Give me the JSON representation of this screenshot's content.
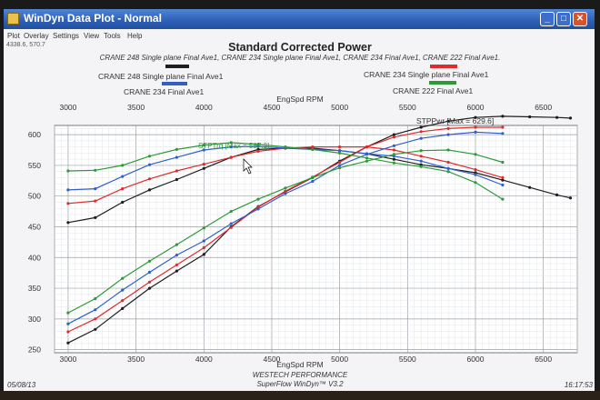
{
  "window": {
    "title": "WinDyn Data Plot - Normal",
    "minimize": "_",
    "maximize": "□",
    "close": "✕"
  },
  "menu": [
    "Plot",
    "Overlay",
    "Settings",
    "View",
    "Tools",
    "Help"
  ],
  "coord_readout": "4338.6, 570.7",
  "footer": {
    "date": "05/08/13",
    "time": "16:17:53",
    "line1": "WESTECH PERFORMANCE",
    "line2": "SuperFlow WinDyn™ V3.2"
  },
  "chart_data": {
    "type": "line",
    "title": "Standard Corrected Power",
    "subtitle": "CRANE 248 Single plane  Final Ave1, CRANE 234 Single plane  Final Ave1, CRANE 234  Final Ave1, CRANE 222 Final Ave1.",
    "xlabel": "EngSpd RPM",
    "xlim": [
      2900,
      6750
    ],
    "ylim": [
      245,
      615
    ],
    "x_ticks": [
      3000,
      3500,
      4000,
      4500,
      5000,
      5500,
      6000,
      6500
    ],
    "y_ticks": [
      250,
      300,
      350,
      400,
      450,
      500,
      550,
      600
    ],
    "annotations": [
      {
        "text": "STPPwr [Max = 629.6]",
        "x": 6080,
        "y": 619
      },
      {
        "text": "STPTrq [Max = 587.3]",
        "x": 3980,
        "y": 585
      }
    ],
    "grid": true,
    "legend_position": "top",
    "series": [
      {
        "name": "CRANE 248 Single plane  Final Ave1",
        "color": "#1e1e1e",
        "metric": "STPTrq",
        "x": [
          3000,
          3200,
          3400,
          3600,
          3800,
          4000,
          4200,
          4400,
          4600,
          4800,
          5000,
          5200,
          5400,
          5600,
          5800,
          6000,
          6200,
          6400,
          6600,
          6700
        ],
        "y": [
          457,
          465,
          490,
          510,
          527,
          545,
          563,
          576,
          578,
          578,
          574,
          569,
          560,
          551,
          545,
          538,
          526,
          514,
          502,
          497
        ]
      },
      {
        "name": "CRANE 248 Single plane  Final Ave1",
        "color": "#1e1e1e",
        "metric": "STPPwr",
        "x": [
          3000,
          3200,
          3400,
          3600,
          3800,
          4000,
          4200,
          4400,
          4600,
          4800,
          5000,
          5200,
          5400,
          5600,
          5800,
          6000,
          6200,
          6400,
          6600,
          6700
        ],
        "y": [
          261,
          283,
          317,
          350,
          378,
          405,
          450,
          483,
          507,
          530,
          557,
          580,
          600,
          612,
          622,
          628,
          630,
          629,
          628,
          627
        ]
      },
      {
        "name": "CRANE 234 Single plane  Final Ave1",
        "color": "#e12b2b",
        "metric": "STPTrq",
        "x": [
          3000,
          3200,
          3400,
          3600,
          3800,
          4000,
          4200,
          4400,
          4600,
          4800,
          5000,
          5200,
          5400,
          5600,
          5800,
          6000,
          6200
        ],
        "y": [
          488,
          492,
          512,
          528,
          541,
          552,
          563,
          573,
          578,
          580,
          580,
          580,
          575,
          565,
          555,
          543,
          530
        ]
      },
      {
        "name": "CRANE 234 Single plane  Final Ave1",
        "color": "#e12b2b",
        "metric": "STPPwr",
        "x": [
          3000,
          3200,
          3400,
          3600,
          3800,
          4000,
          4200,
          4400,
          4600,
          4800,
          5000,
          5200,
          5400,
          5600,
          5800,
          6000,
          6200
        ],
        "y": [
          279,
          300,
          330,
          360,
          388,
          416,
          449,
          482,
          508,
          531,
          555,
          580,
          596,
          605,
          610,
          612,
          612
        ]
      },
      {
        "name": "CRANE 234  Final Ave1",
        "color": "#2f5fcf",
        "metric": "STPTrq",
        "x": [
          3000,
          3200,
          3400,
          3600,
          3800,
          4000,
          4200,
          4400,
          4600,
          4800,
          5000,
          5200,
          5400,
          5600,
          5800,
          6000,
          6200
        ],
        "y": [
          510,
          512,
          532,
          551,
          563,
          575,
          580,
          581,
          578,
          576,
          574,
          569,
          565,
          557,
          545,
          535,
          518
        ]
      },
      {
        "name": "CRANE 234  Final Ave1",
        "color": "#2f5fcf",
        "metric": "STPPwr",
        "x": [
          3000,
          3200,
          3400,
          3600,
          3800,
          4000,
          4200,
          4400,
          4600,
          4800,
          5000,
          5200,
          5400,
          5600,
          5800,
          6000,
          6200
        ],
        "y": [
          292,
          315,
          347,
          376,
          404,
          427,
          455,
          479,
          504,
          524,
          550,
          568,
          582,
          594,
          600,
          604,
          602
        ]
      },
      {
        "name": "CRANE 222 Final Ave1",
        "color": "#2c9a36",
        "metric": "STPTrq",
        "x": [
          3000,
          3200,
          3400,
          3600,
          3800,
          4000,
          4200,
          4400,
          4600,
          4800,
          5000,
          5200,
          5400,
          5600,
          5800,
          6000,
          6200
        ],
        "y": [
          541,
          542,
          550,
          565,
          576,
          583,
          587,
          584,
          580,
          576,
          570,
          562,
          554,
          548,
          540,
          522,
          495
        ]
      },
      {
        "name": "CRANE 222 Final Ave1",
        "color": "#2c9a36",
        "metric": "STPPwr",
        "x": [
          3000,
          3200,
          3400,
          3600,
          3800,
          4000,
          4200,
          4400,
          4600,
          4800,
          5000,
          5200,
          5400,
          5600,
          5800,
          6000,
          6200
        ],
        "y": [
          310,
          333,
          366,
          394,
          421,
          448,
          475,
          495,
          513,
          530,
          546,
          557,
          568,
          574,
          575,
          568,
          555
        ]
      }
    ]
  }
}
